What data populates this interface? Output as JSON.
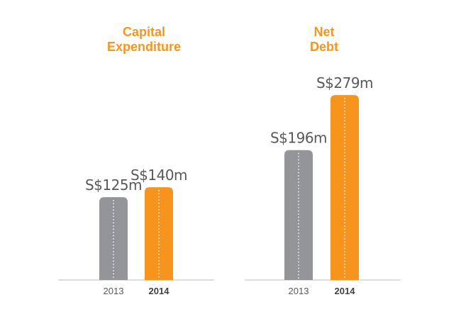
{
  "colors": {
    "previous_year": "#939598",
    "current_year": "#f7941d",
    "title": "#f7941d",
    "label": "#58595b",
    "axis": "#bcbec0",
    "dotted_line": "#ffffff"
  },
  "chart_data": [
    {
      "type": "bar",
      "title_lines": [
        "Capital",
        "Expenditure"
      ],
      "categories": [
        "2013",
        "2014"
      ],
      "values": [
        125,
        140
      ],
      "value_labels": [
        "S$125m",
        "S$140m"
      ],
      "unit": "S$m",
      "ylim": [
        0,
        300
      ],
      "grid": false,
      "legend": "none"
    },
    {
      "type": "bar",
      "title_lines": [
        "Net",
        "Debt"
      ],
      "categories": [
        "2013",
        "2014"
      ],
      "values": [
        196,
        279
      ],
      "value_labels": [
        "S$196m",
        "S$279m"
      ],
      "unit": "S$m",
      "ylim": [
        0,
        300
      ],
      "grid": false,
      "legend": "none"
    }
  ]
}
